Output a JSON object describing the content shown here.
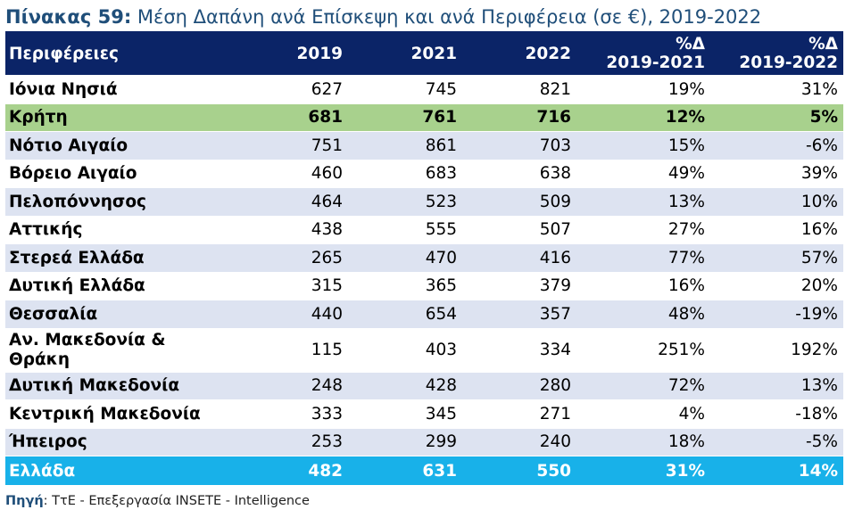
{
  "title": {
    "lead": "Πίνακας 59:",
    "text": "Μέση Δαπάνη ανά Επίσκεψη και ανά Περιφέρεια (σε €), 2019-2022"
  },
  "table": {
    "headers": {
      "region": "Περιφέρειες",
      "y2019": "2019",
      "y2021": "2021",
      "y2022": "2022",
      "d1_top": "%Δ",
      "d1_bottom": "2019-2021",
      "d2_top": "%Δ",
      "d2_bottom": "2019-2022"
    },
    "rows": [
      {
        "region": "Ιόνια Νησιά",
        "y2019": "627",
        "y2021": "745",
        "y2022": "821",
        "d1": "19%",
        "d2": "31%"
      },
      {
        "region": "Κρήτη",
        "y2019": "681",
        "y2021": "761",
        "y2022": "716",
        "d1": "12%",
        "d2": "5%"
      },
      {
        "region": "Νότιο Αιγαίο",
        "y2019": "751",
        "y2021": "861",
        "y2022": "703",
        "d1": "15%",
        "d2": "-6%"
      },
      {
        "region": "Βόρειο Αιγαίο",
        "y2019": "460",
        "y2021": "683",
        "y2022": "638",
        "d1": "49%",
        "d2": "39%"
      },
      {
        "region": "Πελοπόννησος",
        "y2019": "464",
        "y2021": "523",
        "y2022": "509",
        "d1": "13%",
        "d2": "10%"
      },
      {
        "region": "Αττικής",
        "y2019": "438",
        "y2021": "555",
        "y2022": "507",
        "d1": "27%",
        "d2": "16%"
      },
      {
        "region": "Στερεά Ελλάδα",
        "y2019": "265",
        "y2021": "470",
        "y2022": "416",
        "d1": "77%",
        "d2": "57%"
      },
      {
        "region": "Δυτική Ελλάδα",
        "y2019": "315",
        "y2021": "365",
        "y2022": "379",
        "d1": "16%",
        "d2": "20%"
      },
      {
        "region": "Θεσσαλία",
        "y2019": "440",
        "y2021": "654",
        "y2022": "357",
        "d1": "48%",
        "d2": "-19%"
      },
      {
        "region": "Αν. Μακεδονία & Θράκη",
        "y2019": "115",
        "y2021": "403",
        "y2022": "334",
        "d1": "251%",
        "d2": "192%"
      },
      {
        "region": "Δυτική Μακεδονία",
        "y2019": "248",
        "y2021": "428",
        "y2022": "280",
        "d1": "72%",
        "d2": "13%"
      },
      {
        "region": "Κεντρική Μακεδονία",
        "y2019": "333",
        "y2021": "345",
        "y2022": "271",
        "d1": "4%",
        "d2": "-18%"
      },
      {
        "region": "Ήπειρος",
        "y2019": "253",
        "y2021": "299",
        "y2022": "240",
        "d1": "18%",
        "d2": "-5%"
      }
    ],
    "total": {
      "region": "Ελλάδα",
      "y2019": "482",
      "y2021": "631",
      "y2022": "550",
      "d1": "31%",
      "d2": "14%"
    }
  },
  "source": {
    "lead": "Πηγή",
    "text": ": ΤτΕ - Επεξεργασία INSETE - Intelligence"
  },
  "colors": {
    "header_bg": "#0b2467",
    "title_color": "#1f4e79",
    "crete_highlight": "#a8d18d",
    "band_row": "#dde3f1",
    "total_bg": "#18b1e9"
  }
}
